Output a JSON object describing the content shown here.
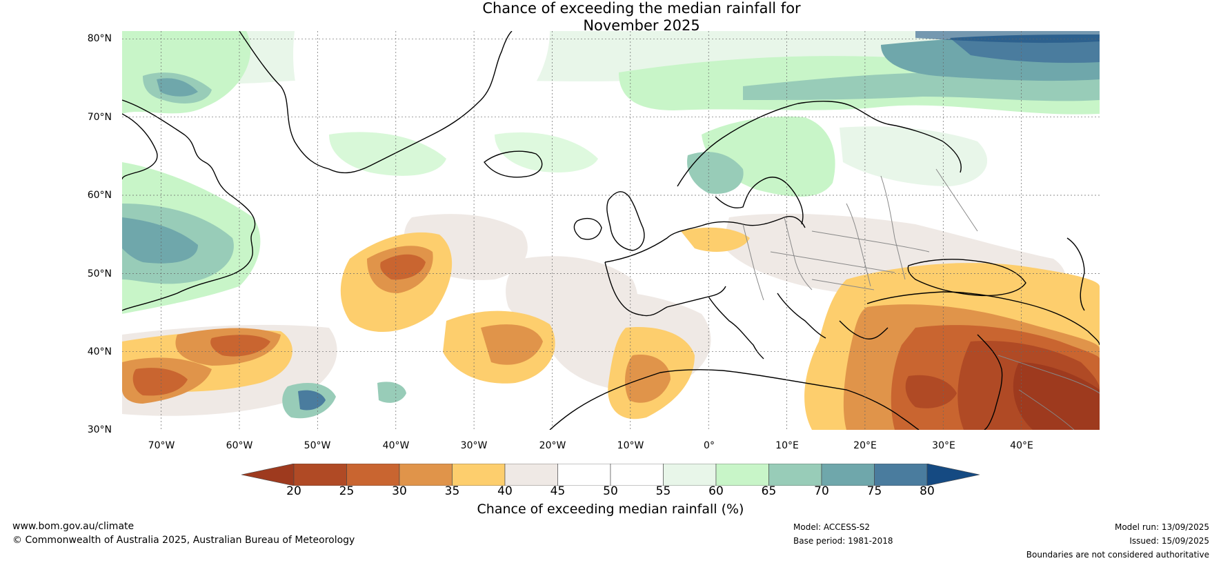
{
  "title_line1": "Chance of exceeding the median rainfall for",
  "title_line2": "November 2025",
  "map": {
    "lon_range": [
      -75,
      50
    ],
    "lat_range": [
      30,
      81
    ],
    "lat_ticks": [
      "80°N",
      "70°N",
      "60°N",
      "50°N",
      "40°N",
      "30°N"
    ],
    "lon_ticks": [
      "70°W",
      "60°W",
      "50°W",
      "40°W",
      "30°W",
      "20°W",
      "10°W",
      "0°",
      "10°E",
      "20°E",
      "30°E",
      "40°E"
    ]
  },
  "colorbar": {
    "title": "Chance of exceeding median rainfall (%)",
    "ticks": [
      "20",
      "25",
      "30",
      "35",
      "40",
      "45",
      "50",
      "55",
      "60",
      "65",
      "70",
      "75",
      "80"
    ],
    "colors": [
      "#9e3a1e",
      "#b04a25",
      "#c96530",
      "#e0944a",
      "#fdce6d",
      "#efe9e5",
      "#ffffff",
      "#ffffff",
      "#e8f6e9",
      "#c8f5c8",
      "#98ccb8",
      "#6fa7ab",
      "#4a7c9e",
      "#154a82"
    ]
  },
  "footer": {
    "website": "www.bom.gov.au/climate",
    "copyright": "© Commonwealth of Australia 2025, Australian Bureau of Meteorology",
    "model": "Model: ACCESS-S2",
    "base_period": "Base period: 1981-2018",
    "model_run": "Model run: 13/09/2025",
    "issued": "Issued: 15/09/2025",
    "boundaries_note": "Boundaries are not considered authoritative"
  }
}
